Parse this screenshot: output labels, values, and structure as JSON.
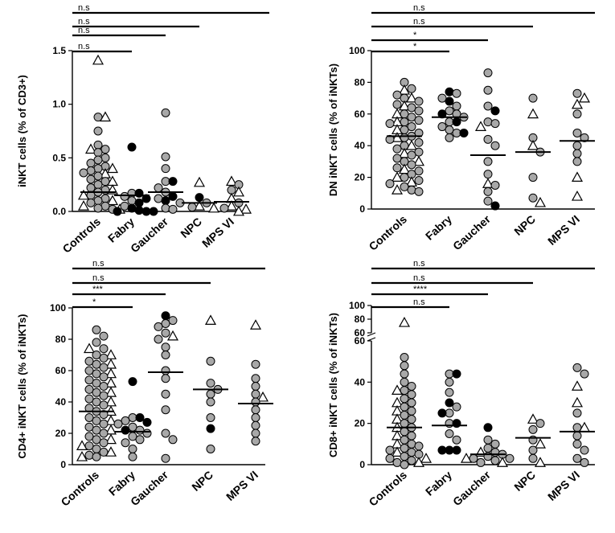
{
  "figure": {
    "categories": [
      "Controls",
      "Fabry",
      "Gaucher",
      "NPC",
      "MPS VI"
    ],
    "colors": {
      "grey": "#a8a8a8",
      "black": "#000000",
      "white": "#ffffff",
      "axis": "#000000"
    }
  },
  "chart_data": [
    {
      "type": "scatter",
      "id": "inkt",
      "ylabel": "iNKT cells (% of CD3+)",
      "ylim": [
        0,
        1.5
      ],
      "yticks": [
        "0.0",
        "0.5",
        "1.0",
        "1.5"
      ],
      "ytick_values": [
        0,
        0.5,
        1.0,
        1.5
      ],
      "categories": [
        "Controls",
        "Fabry",
        "Gaucher",
        "NPC",
        "MPS VI"
      ],
      "medians": [
        0.18,
        0.15,
        0.18,
        0.08,
        0.09
      ],
      "significance": [
        {
          "label": "n.s",
          "to": "Fabry"
        },
        {
          "label": "n.s",
          "to": "Gaucher"
        },
        {
          "label": "n.s",
          "to": "NPC"
        },
        {
          "label": "n.s",
          "to": "MPS VI"
        }
      ],
      "groups": [
        {
          "grey": [
            0.88,
            0.75,
            0.62,
            0.58,
            0.55,
            0.5,
            0.48,
            0.45,
            0.42,
            0.4,
            0.38,
            0.36,
            0.33,
            0.3,
            0.28,
            0.25,
            0.22,
            0.2,
            0.18,
            0.15,
            0.12,
            0.1,
            0.08,
            0.05,
            0.03,
            0.02
          ],
          "black": [],
          "triangle": [
            1.41,
            0.88,
            0.58,
            0.4,
            0.35,
            0.28,
            0.2,
            0.15,
            0.1,
            0.05,
            0.02
          ]
        },
        {
          "grey": [
            0.17,
            0.14,
            0.1,
            0.05
          ],
          "black": [
            0.6,
            0.17,
            0.12,
            0.08,
            0.03,
            0.01,
            0.0,
            0.0,
            0.0
          ],
          "triangle": []
        },
        {
          "grey": [
            0.92,
            0.51,
            0.4,
            0.28,
            0.22,
            0.18,
            0.12,
            0.08,
            0.03,
            0.02
          ],
          "black": [
            0.28,
            0.14,
            0.1
          ],
          "triangle": []
        },
        {
          "grey": [
            0.08,
            0.04
          ],
          "black": [
            0.13
          ],
          "triangle": [
            0.27,
            0.05,
            0.03
          ]
        },
        {
          "grey": [
            0.25,
            0.2,
            0.08,
            0.03
          ],
          "black": [],
          "triangle": [
            0.28,
            0.18,
            0.12,
            0.05,
            0.02,
            0.0
          ]
        }
      ]
    },
    {
      "type": "scatter",
      "id": "dn",
      "ylabel": "DN iNKT cells (% of iNKTs)",
      "ylim": [
        0,
        100
      ],
      "yticks": [
        "0",
        "20",
        "40",
        "60",
        "80",
        "100"
      ],
      "ytick_values": [
        0,
        20,
        40,
        60,
        80,
        100
      ],
      "categories": [
        "Controls",
        "Fabry",
        "Gaucher",
        "NPC",
        "MPS VI"
      ],
      "medians": [
        46,
        58,
        34,
        36,
        43
      ],
      "significance": [
        {
          "label": "*",
          "to": "Fabry"
        },
        {
          "label": "*",
          "to": "Gaucher"
        },
        {
          "label": "n.s",
          "to": "NPC"
        },
        {
          "label": "n.s",
          "to": "MPS VI"
        }
      ],
      "groups": [
        {
          "grey": [
            80,
            76,
            72,
            70,
            68,
            66,
            64,
            62,
            60,
            58,
            56,
            55,
            54,
            52,
            50,
            48,
            46,
            45,
            44,
            42,
            40,
            38,
            36,
            34,
            32,
            30,
            28,
            26,
            24,
            22,
            20,
            18,
            16,
            14,
            12,
            11
          ],
          "black": [],
          "triangle": [
            75,
            70,
            65,
            60,
            55,
            50,
            45,
            40,
            35,
            30,
            25,
            20,
            17,
            12
          ]
        },
        {
          "grey": [
            73,
            70,
            65,
            62,
            60,
            58,
            55,
            52,
            50,
            48,
            45
          ],
          "black": [
            74,
            68,
            60,
            55,
            48
          ],
          "triangle": []
        },
        {
          "grey": [
            86,
            75,
            65,
            55,
            54,
            44,
            40,
            30,
            22,
            15,
            11,
            5
          ],
          "black": [
            62,
            2
          ],
          "triangle": [
            52,
            16
          ]
        },
        {
          "grey": [
            70,
            45,
            36,
            20,
            7
          ],
          "black": [],
          "triangle": [
            60,
            40,
            4
          ]
        },
        {
          "grey": [
            73,
            60,
            48,
            45,
            40,
            35,
            30
          ],
          "black": [],
          "triangle": [
            70,
            66,
            20,
            8
          ]
        }
      ]
    },
    {
      "type": "scatter",
      "id": "cd4",
      "ylabel": "CD4+ iNKT cells (% of iNKTs)",
      "ylim": [
        0,
        100
      ],
      "yticks": [
        "0",
        "20",
        "40",
        "60",
        "80",
        "100"
      ],
      "ytick_values": [
        0,
        20,
        40,
        60,
        80,
        100
      ],
      "categories": [
        "Controls",
        "Fabry",
        "Gaucher",
        "NPC",
        "MPS VI"
      ],
      "medians": [
        34,
        21,
        59,
        48,
        39
      ],
      "significance": [
        {
          "label": "*",
          "to": "Fabry"
        },
        {
          "label": "***",
          "to": "Gaucher"
        },
        {
          "label": "n.s",
          "to": "NPC"
        },
        {
          "label": "n.s",
          "to": "MPS VI"
        }
      ],
      "groups": [
        {
          "grey": [
            86,
            82,
            78,
            74,
            70,
            68,
            66,
            64,
            62,
            60,
            58,
            56,
            54,
            52,
            50,
            48,
            46,
            44,
            42,
            40,
            38,
            36,
            34,
            32,
            30,
            28,
            26,
            24,
            22,
            20,
            18,
            16,
            14,
            12,
            10,
            8,
            6,
            5
          ],
          "black": [],
          "triangle": [
            74,
            70,
            64,
            58,
            52,
            46,
            40,
            34,
            28,
            22,
            16,
            12,
            8,
            5
          ]
        },
        {
          "grey": [
            30,
            28,
            26,
            24,
            22,
            20,
            18,
            16,
            14,
            10,
            5
          ],
          "black": [
            53,
            30,
            27,
            22
          ],
          "triangle": []
        },
        {
          "grey": [
            92,
            90,
            88,
            84,
            80,
            75,
            70,
            60,
            55,
            45,
            35,
            20,
            16,
            4
          ],
          "black": [
            95
          ],
          "triangle": [
            82
          ]
        },
        {
          "grey": [
            66,
            52,
            48,
            45,
            40,
            30,
            10
          ],
          "black": [
            23
          ],
          "triangle": [
            92
          ]
        },
        {
          "grey": [
            64,
            55,
            50,
            45,
            40,
            35,
            30,
            25,
            20,
            15
          ],
          "black": [],
          "triangle": [
            89,
            43
          ]
        }
      ]
    },
    {
      "type": "scatter",
      "id": "cd8",
      "ylabel": "CD8+ iNKT cells (% of iNKTs)",
      "ylim": [
        0,
        100
      ],
      "y_axis_break": [
        60,
        60
      ],
      "yticks": [
        "0",
        "20",
        "40",
        "60",
        "60",
        "80",
        "100"
      ],
      "ytick_values": [
        0,
        20,
        40,
        60,
        60,
        80,
        100
      ],
      "categories": [
        "Controls",
        "Fabry",
        "Gaucher",
        "NPC",
        "MPS VI"
      ],
      "medians": [
        18,
        19,
        5,
        13,
        16
      ],
      "significance": [
        {
          "label": "n.s",
          "to": "Fabry"
        },
        {
          "label": "****",
          "to": "Gaucher"
        },
        {
          "label": "n.s",
          "to": "NPC"
        },
        {
          "label": "n.s",
          "to": "MPS VI"
        }
      ],
      "groups": [
        {
          "grey": [
            52,
            48,
            44,
            40,
            38,
            36,
            34,
            32,
            30,
            28,
            26,
            24,
            22,
            20,
            18,
            16,
            14,
            12,
            10,
            9,
            8,
            7,
            6,
            5,
            4,
            3,
            2,
            1,
            0
          ],
          "black": [],
          "triangle": [
            75,
            36,
            30,
            26,
            22,
            18,
            14,
            10,
            6,
            3,
            1
          ]
        },
        {
          "grey": [
            44,
            40,
            35,
            28,
            25,
            20,
            15,
            12
          ],
          "black": [
            44,
            30,
            25,
            20,
            7,
            7,
            7
          ],
          "triangle": []
        },
        {
          "grey": [
            12,
            10,
            8,
            6,
            5,
            4,
            3,
            3,
            2,
            1
          ],
          "black": [
            18
          ],
          "triangle": [
            6,
            3,
            1
          ]
        },
        {
          "grey": [
            20,
            17,
            12,
            7,
            3
          ],
          "black": [],
          "triangle": [
            22,
            10,
            1
          ]
        },
        {
          "grey": [
            47,
            44,
            25,
            18,
            14,
            10,
            7,
            3,
            1
          ],
          "black": [],
          "triangle": [
            38,
            30,
            18
          ]
        }
      ]
    }
  ]
}
